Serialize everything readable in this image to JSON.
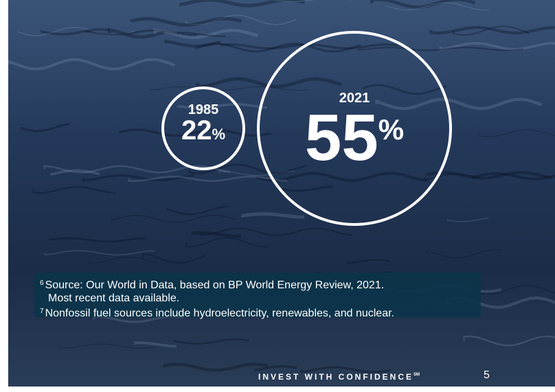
{
  "stats": [
    {
      "year": "1985",
      "value": "22",
      "unit": "%"
    },
    {
      "year": "2021",
      "value": "55",
      "unit": "%"
    }
  ],
  "footnotes": [
    {
      "marker": "6",
      "lines": [
        "Source: Our World in Data, based on BP World Energy Review, 2021.",
        "Most recent data available."
      ]
    },
    {
      "marker": "7",
      "lines": [
        "Nonfossil fuel sources include hydroelectricity, renewables, and nuclear."
      ]
    }
  ],
  "footer": {
    "tagline": "INVEST WITH CONFIDENCE",
    "mark": "SM",
    "page": "5"
  }
}
